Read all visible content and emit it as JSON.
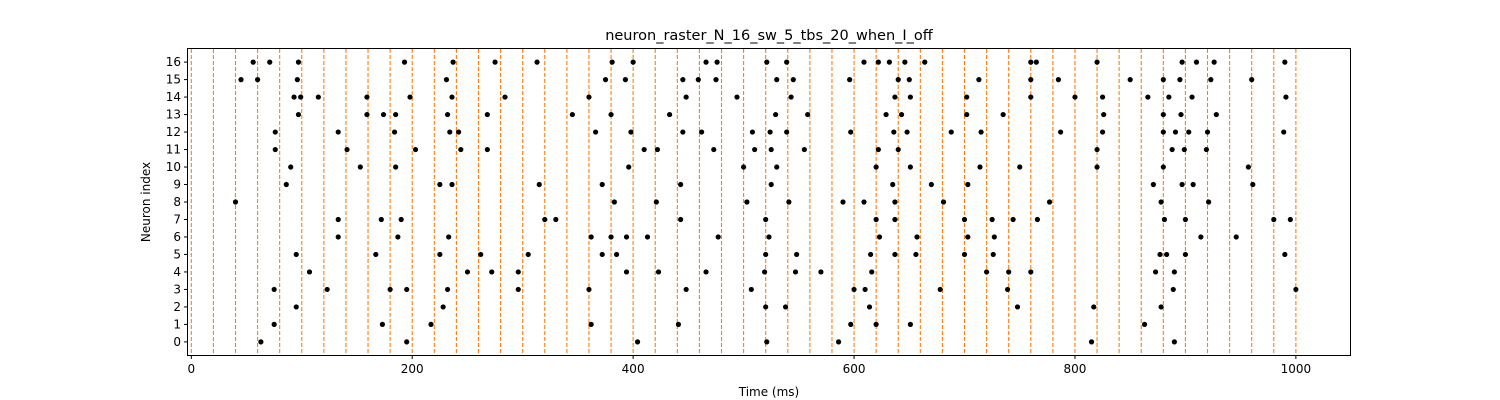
{
  "chart_data": {
    "type": "scatter",
    "title": "neuron_raster_N_16_sw_5_tbs_20_when_I_off",
    "xlabel": "Time (ms)",
    "ylabel": "Neuron index",
    "xlim": [
      -3,
      1049
    ],
    "ylim": [
      -0.75,
      16.75
    ],
    "x_ticks": [
      0,
      200,
      400,
      600,
      800,
      1000
    ],
    "y_ticks": [
      0,
      1,
      2,
      3,
      4,
      5,
      6,
      7,
      8,
      9,
      10,
      11,
      12,
      13,
      14,
      15,
      16
    ],
    "grid": false,
    "legend": "none",
    "spike_color": "#000000",
    "boundary_color": "#ff7f0e",
    "time_bin_boundaries": [
      0,
      20,
      40,
      60,
      80,
      100,
      120,
      140,
      160,
      180,
      200,
      220,
      240,
      260,
      280,
      300,
      320,
      340,
      360,
      380,
      400,
      420,
      440,
      460,
      480,
      500,
      520,
      540,
      560,
      580,
      600,
      620,
      640,
      660,
      680,
      700,
      720,
      740,
      760,
      780,
      800,
      820,
      840,
      860,
      880,
      900,
      920,
      940,
      960,
      980,
      1000
    ],
    "series": [
      {
        "neuron": 0,
        "times": [
          63,
          195,
          404,
          521,
          586,
          815,
          890
        ]
      },
      {
        "neuron": 1,
        "times": [
          75,
          173,
          217,
          362,
          441,
          597,
          620,
          651,
          863
        ]
      },
      {
        "neuron": 2,
        "times": [
          95,
          228,
          520,
          538,
          614,
          748,
          817,
          878
        ]
      },
      {
        "neuron": 3,
        "times": [
          75,
          123,
          180,
          195,
          232,
          296,
          360,
          448,
          507,
          600,
          610,
          678,
          739,
          889,
          1000
        ]
      },
      {
        "neuron": 4,
        "times": [
          107,
          250,
          272,
          296,
          394,
          423,
          466,
          519,
          547,
          570,
          616,
          720,
          740,
          760,
          873,
          890
        ]
      },
      {
        "neuron": 5,
        "times": [
          95,
          167,
          225,
          262,
          305,
          372,
          385,
          520,
          548,
          615,
          637,
          656,
          700,
          726,
          877,
          883,
          900,
          990
        ]
      },
      {
        "neuron": 6,
        "times": [
          133,
          187,
          233,
          362,
          380,
          394,
          413,
          477,
          523,
          623,
          657,
          703,
          727,
          914,
          946
        ]
      },
      {
        "neuron": 7,
        "times": [
          133,
          172,
          190,
          320,
          330,
          443,
          520,
          620,
          637,
          700,
          725,
          744,
          766,
          881,
          900,
          980,
          995
        ]
      },
      {
        "neuron": 8,
        "times": [
          40,
          383,
          421,
          503,
          541,
          590,
          609,
          637,
          681,
          777,
          878,
          921
        ]
      },
      {
        "neuron": 9,
        "times": [
          86,
          225,
          236,
          315,
          372,
          443,
          525,
          635,
          670,
          703,
          871,
          897,
          907,
          961
        ]
      },
      {
        "neuron": 10,
        "times": [
          90,
          153,
          185,
          396,
          500,
          530,
          620,
          651,
          714,
          750,
          820,
          880,
          957
        ]
      },
      {
        "neuron": 11,
        "times": [
          76,
          141,
          203,
          244,
          268,
          410,
          422,
          473,
          510,
          525,
          555,
          622,
          640,
          820,
          888,
          899,
          919
        ]
      },
      {
        "neuron": 12,
        "times": [
          76,
          133,
          184,
          234,
          242,
          366,
          398,
          445,
          462,
          508,
          524,
          539,
          597,
          636,
          648,
          688,
          715,
          787,
          825,
          880,
          891,
          903,
          920,
          989
        ]
      },
      {
        "neuron": 13,
        "times": [
          97,
          159,
          174,
          185,
          232,
          268,
          345,
          380,
          433,
          529,
          558,
          629,
          643,
          702,
          735,
          826,
          880,
          896,
          928
        ]
      },
      {
        "neuron": 14,
        "times": [
          93,
          99,
          115,
          159,
          198,
          236,
          284,
          360,
          448,
          494,
          543,
          637,
          651,
          702,
          760,
          800,
          825,
          866,
          885,
          906,
          991
        ]
      },
      {
        "neuron": 15,
        "times": [
          45,
          60,
          96,
          231,
          375,
          393,
          445,
          459,
          475,
          530,
          545,
          596,
          640,
          650,
          713,
          760,
          785,
          850,
          880,
          895,
          923,
          960
        ]
      },
      {
        "neuron": 16,
        "times": [
          56,
          71,
          97,
          193,
          237,
          275,
          313,
          381,
          400,
          466,
          476,
          521,
          539,
          609,
          622,
          632,
          646,
          664,
          760,
          765,
          820,
          897,
          910,
          926,
          990
        ]
      }
    ]
  }
}
